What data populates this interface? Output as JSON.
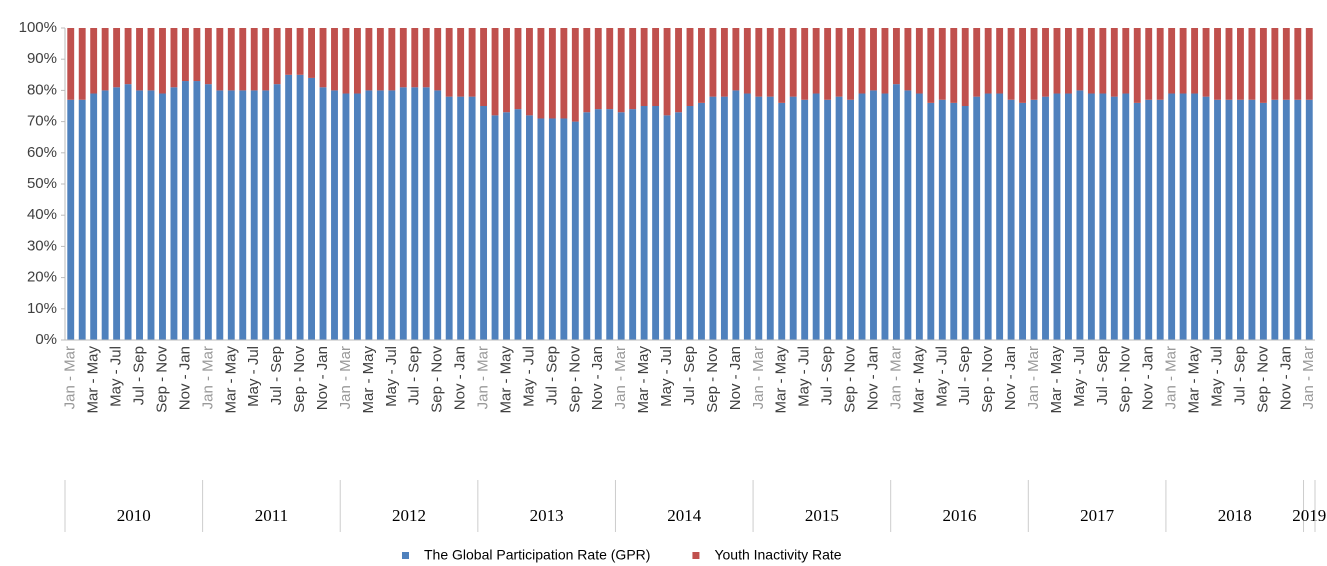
{
  "chart_data": {
    "type": "stacked_bar",
    "categories": [
      "Jan - Mar",
      null,
      "Mar - May",
      null,
      "May - Jul",
      null,
      "Jul - Sep",
      null,
      "Sep - Nov",
      null,
      "Nov - Jan",
      null,
      "Jan - Mar",
      null,
      "Mar - May",
      null,
      "May - Jul",
      null,
      "Jul - Sep",
      null,
      "Sep - Nov",
      null,
      "Nov - Jan",
      null,
      "Jan - Mar",
      null,
      "Mar - May",
      null,
      "May - Jul",
      null,
      "Jul - Sep",
      null,
      "Sep - Nov",
      null,
      "Nov - Jan",
      null,
      "Jan - Mar",
      null,
      "Mar - May",
      null,
      "May - Jul",
      null,
      "Jul - Sep",
      null,
      "Sep - Nov",
      null,
      "Nov - Jan",
      null,
      "Jan - Mar",
      null,
      "Mar - May",
      null,
      "May - Jul",
      null,
      "Jul - Sep",
      null,
      "Sep - Nov",
      null,
      "Nov - Jan",
      null,
      "Jan - Mar",
      null,
      "Mar - May",
      null,
      "May - Jul",
      null,
      "Jul - Sep",
      null,
      "Sep - Nov",
      null,
      "Nov - Jan",
      null,
      "Jan - Mar",
      null,
      "Mar - May",
      null,
      "May - Jul",
      null,
      "Jul - Sep",
      null,
      "Sep - Nov",
      null,
      "Nov - Jan",
      null,
      "Jan - Mar",
      null,
      "Mar - May",
      null,
      "May - Jul",
      null,
      "Jul - Sep",
      null,
      "Sep - Nov",
      null,
      "Nov - Jan",
      null,
      "Jan - Mar",
      null,
      "Mar - May",
      null,
      "May - Jul",
      null,
      "Jul - Sep",
      null,
      "Sep - Nov",
      null,
      "Nov - Jan",
      null,
      "Jan - Mar"
    ],
    "years": [
      "2010",
      "2011",
      "2012",
      "2013",
      "2014",
      "2015",
      "2016",
      "2017",
      "2018",
      "2019"
    ],
    "series": [
      {
        "name": "The Global Participation Rate (GPR)",
        "color": "#4f81bd",
        "values": [
          77,
          77,
          79,
          80,
          81,
          82,
          80,
          80,
          79,
          81,
          83,
          83,
          82,
          80,
          80,
          80,
          80,
          80,
          82,
          85,
          85,
          84,
          81,
          80,
          79,
          79,
          80,
          80,
          80,
          81,
          81,
          81,
          80,
          78,
          78,
          78,
          75,
          72,
          73,
          74,
          72,
          71,
          71,
          71,
          70,
          73,
          74,
          74,
          73,
          74,
          75,
          75,
          72,
          73,
          75,
          76,
          78,
          78,
          80,
          79,
          78,
          78,
          76,
          78,
          77,
          79,
          77,
          78,
          77,
          79,
          80,
          79,
          82,
          80,
          79,
          76,
          77,
          76,
          75,
          78,
          79,
          79,
          77,
          76,
          77,
          78,
          79,
          79,
          80,
          79,
          79,
          78,
          79,
          76,
          77,
          77,
          79,
          79,
          79,
          78,
          77,
          77,
          77,
          77,
          76,
          77,
          77,
          77,
          77
        ]
      },
      {
        "name": "Youth Inactivity Rate",
        "color": "#c0504d",
        "values": [
          23,
          23,
          21,
          20,
          19,
          18,
          20,
          20,
          21,
          19,
          17,
          17,
          18,
          20,
          20,
          20,
          20,
          20,
          18,
          15,
          15,
          16,
          19,
          20,
          21,
          21,
          20,
          20,
          20,
          19,
          19,
          19,
          20,
          22,
          22,
          22,
          25,
          28,
          27,
          26,
          28,
          29,
          29,
          29,
          30,
          27,
          26,
          26,
          27,
          26,
          25,
          25,
          28,
          27,
          25,
          24,
          22,
          22,
          20,
          21,
          22,
          22,
          24,
          22,
          23,
          21,
          23,
          22,
          23,
          21,
          20,
          21,
          18,
          20,
          21,
          24,
          23,
          24,
          25,
          22,
          21,
          21,
          23,
          24,
          23,
          22,
          21,
          21,
          20,
          21,
          21,
          22,
          21,
          24,
          23,
          23,
          21,
          21,
          21,
          22,
          23,
          23,
          23,
          23,
          24,
          23,
          23,
          23,
          23
        ]
      }
    ],
    "ylim": [
      0,
      100
    ],
    "yticks": [
      {
        "value": 0,
        "label": "0%"
      },
      {
        "value": 10,
        "label": "10%"
      },
      {
        "value": 20,
        "label": "20%"
      },
      {
        "value": 30,
        "label": "30%"
      },
      {
        "value": 40,
        "label": "40%"
      },
      {
        "value": 50,
        "label": "50%"
      },
      {
        "value": 60,
        "label": "60%"
      },
      {
        "value": 70,
        "label": "70%"
      },
      {
        "value": 80,
        "label": "80%"
      },
      {
        "value": 90,
        "label": "90%"
      },
      {
        "value": 100,
        "label": "100%"
      }
    ],
    "grid": false,
    "legend": "bottom"
  }
}
